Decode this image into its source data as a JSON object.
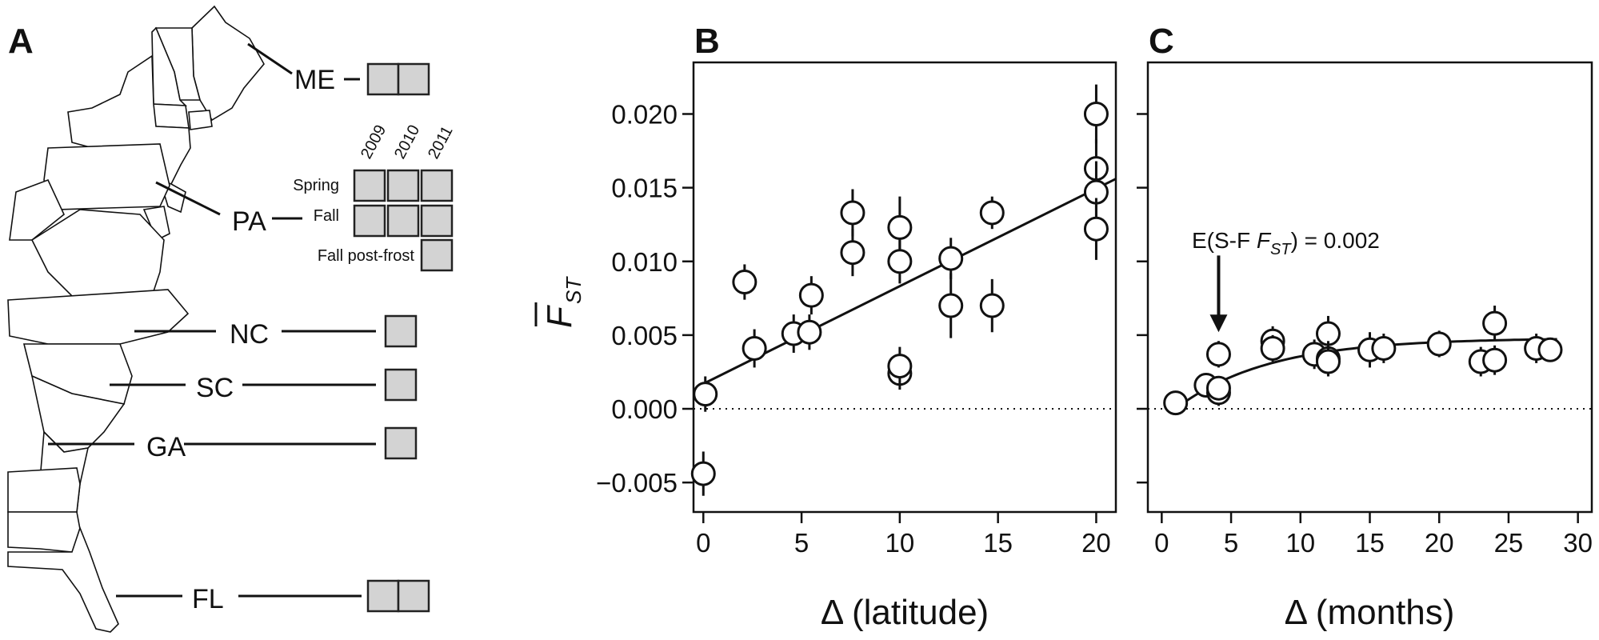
{
  "panel_labels": {
    "a": "A",
    "b": "B",
    "c": "C"
  },
  "panel_a": {
    "years": [
      "2009",
      "2010",
      "2011"
    ],
    "row_labels": {
      "spring": "Spring",
      "fall": "Fall",
      "post_frost": "Fall post-frost"
    },
    "sites": [
      {
        "code": "ME",
        "boxes": 2
      },
      {
        "code": "PA",
        "boxes": 7
      },
      {
        "code": "NC",
        "boxes": 1
      },
      {
        "code": "SC",
        "boxes": 1
      },
      {
        "code": "GA",
        "boxes": 1
      },
      {
        "code": "FL",
        "boxes": 2
      }
    ],
    "colors": {
      "box_fill": "#d3d3d3",
      "line": "#111111"
    }
  },
  "y_axis_label": {
    "main": "F",
    "sub": "ST"
  },
  "annotation": {
    "prefix": "E(S-F ",
    "italic": "F",
    "sub": "ST",
    "suffix": ") = 0.002"
  },
  "chart_data": [
    {
      "type": "scatter",
      "panel": "B",
      "xlabel": "Δ (latitude)",
      "ylabel": "mean F_ST",
      "xlim": [
        -0.5,
        21
      ],
      "ylim": [
        -0.007,
        0.0235
      ],
      "xticks": [
        0,
        5,
        10,
        15,
        20
      ],
      "yticks": [
        -0.005,
        0.0,
        0.005,
        0.01,
        0.015,
        0.02
      ],
      "ytick_labels": [
        "−0.005",
        "0.000",
        "0.005",
        "0.010",
        "0.015",
        "0.020"
      ],
      "reference_line_y": 0.0,
      "points": [
        {
          "x": 0.0,
          "y": -0.0044,
          "err": 0.0015
        },
        {
          "x": 0.1,
          "y": 0.001,
          "err": 0.0012
        },
        {
          "x": 2.1,
          "y": 0.0086,
          "err": 0.0012
        },
        {
          "x": 2.6,
          "y": 0.0041,
          "err": 0.0013
        },
        {
          "x": 4.6,
          "y": 0.0051,
          "err": 0.0013
        },
        {
          "x": 5.4,
          "y": 0.0052,
          "err": 0.0012
        },
        {
          "x": 5.5,
          "y": 0.0077,
          "err": 0.0013
        },
        {
          "x": 7.6,
          "y": 0.0133,
          "err": 0.0016
        },
        {
          "x": 7.6,
          "y": 0.0106,
          "err": 0.0016
        },
        {
          "x": 10.0,
          "y": 0.0123,
          "err": 0.0021
        },
        {
          "x": 10.0,
          "y": 0.01,
          "err": 0.0015
        },
        {
          "x": 10.0,
          "y": 0.0024,
          "err": 0.0011
        },
        {
          "x": 10.0,
          "y": 0.0029,
          "err": 0.0013
        },
        {
          "x": 12.6,
          "y": 0.0102,
          "err": 0.0014
        },
        {
          "x": 12.6,
          "y": 0.007,
          "err": 0.0022
        },
        {
          "x": 14.7,
          "y": 0.0133,
          "err": 0.0011
        },
        {
          "x": 14.7,
          "y": 0.007,
          "err": 0.0018
        },
        {
          "x": 20.0,
          "y": 0.02,
          "err": 0.002
        },
        {
          "x": 20.0,
          "y": 0.0163,
          "err": 0.002
        },
        {
          "x": 20.0,
          "y": 0.0147,
          "err": 0.0021
        },
        {
          "x": 20.0,
          "y": 0.0122,
          "err": 0.0021
        }
      ],
      "fit": {
        "kind": "linear",
        "x": [
          -0.3,
          21
        ],
        "y": [
          0.0015,
          0.0156
        ]
      }
    },
    {
      "type": "scatter",
      "panel": "C",
      "xlabel": "Δ (months)",
      "ylabel": "",
      "xlim": [
        -1,
        31
      ],
      "ylim": [
        -0.007,
        0.0235
      ],
      "xticks": [
        0,
        5,
        10,
        15,
        20,
        25,
        30
      ],
      "yticks": [
        -0.005,
        0.0,
        0.005,
        0.01,
        0.015,
        0.02
      ],
      "reference_line_y": 0.0,
      "points": [
        {
          "x": 1.0,
          "y": 0.0004,
          "err": 0.0006
        },
        {
          "x": 3.2,
          "y": 0.0016,
          "err": 0.0008
        },
        {
          "x": 4.1,
          "y": 0.0011,
          "err": 0.0009
        },
        {
          "x": 4.1,
          "y": 0.0014,
          "err": 0.0008
        },
        {
          "x": 4.1,
          "y": 0.0037,
          "err": 0.0009
        },
        {
          "x": 8.0,
          "y": 0.0046,
          "err": 0.001
        },
        {
          "x": 8.0,
          "y": 0.0041,
          "err": 0.0009
        },
        {
          "x": 11.0,
          "y": 0.0037,
          "err": 0.001
        },
        {
          "x": 12.0,
          "y": 0.0051,
          "err": 0.0012
        },
        {
          "x": 12.0,
          "y": 0.0034,
          "err": 0.0012
        },
        {
          "x": 12.0,
          "y": 0.0032,
          "err": 0.001
        },
        {
          "x": 15.0,
          "y": 0.004,
          "err": 0.0012
        },
        {
          "x": 16.0,
          "y": 0.0041,
          "err": 0.001
        },
        {
          "x": 20.0,
          "y": 0.0044,
          "err": 0.0009
        },
        {
          "x": 23.0,
          "y": 0.0032,
          "err": 0.001
        },
        {
          "x": 24.0,
          "y": 0.0058,
          "err": 0.0012
        },
        {
          "x": 24.0,
          "y": 0.0033,
          "err": 0.001
        },
        {
          "x": 27.0,
          "y": 0.0041,
          "err": 0.001
        },
        {
          "x": 28.0,
          "y": 0.004,
          "err": 0.0008
        }
      ],
      "fit": {
        "kind": "saturating",
        "x0": 1.0,
        "x1": 28.5,
        "asymptote": 0.0048,
        "rate": 0.15
      },
      "arrow": {
        "x": 4.1,
        "y_from": 0.0104,
        "y_to": 0.0052
      }
    }
  ]
}
